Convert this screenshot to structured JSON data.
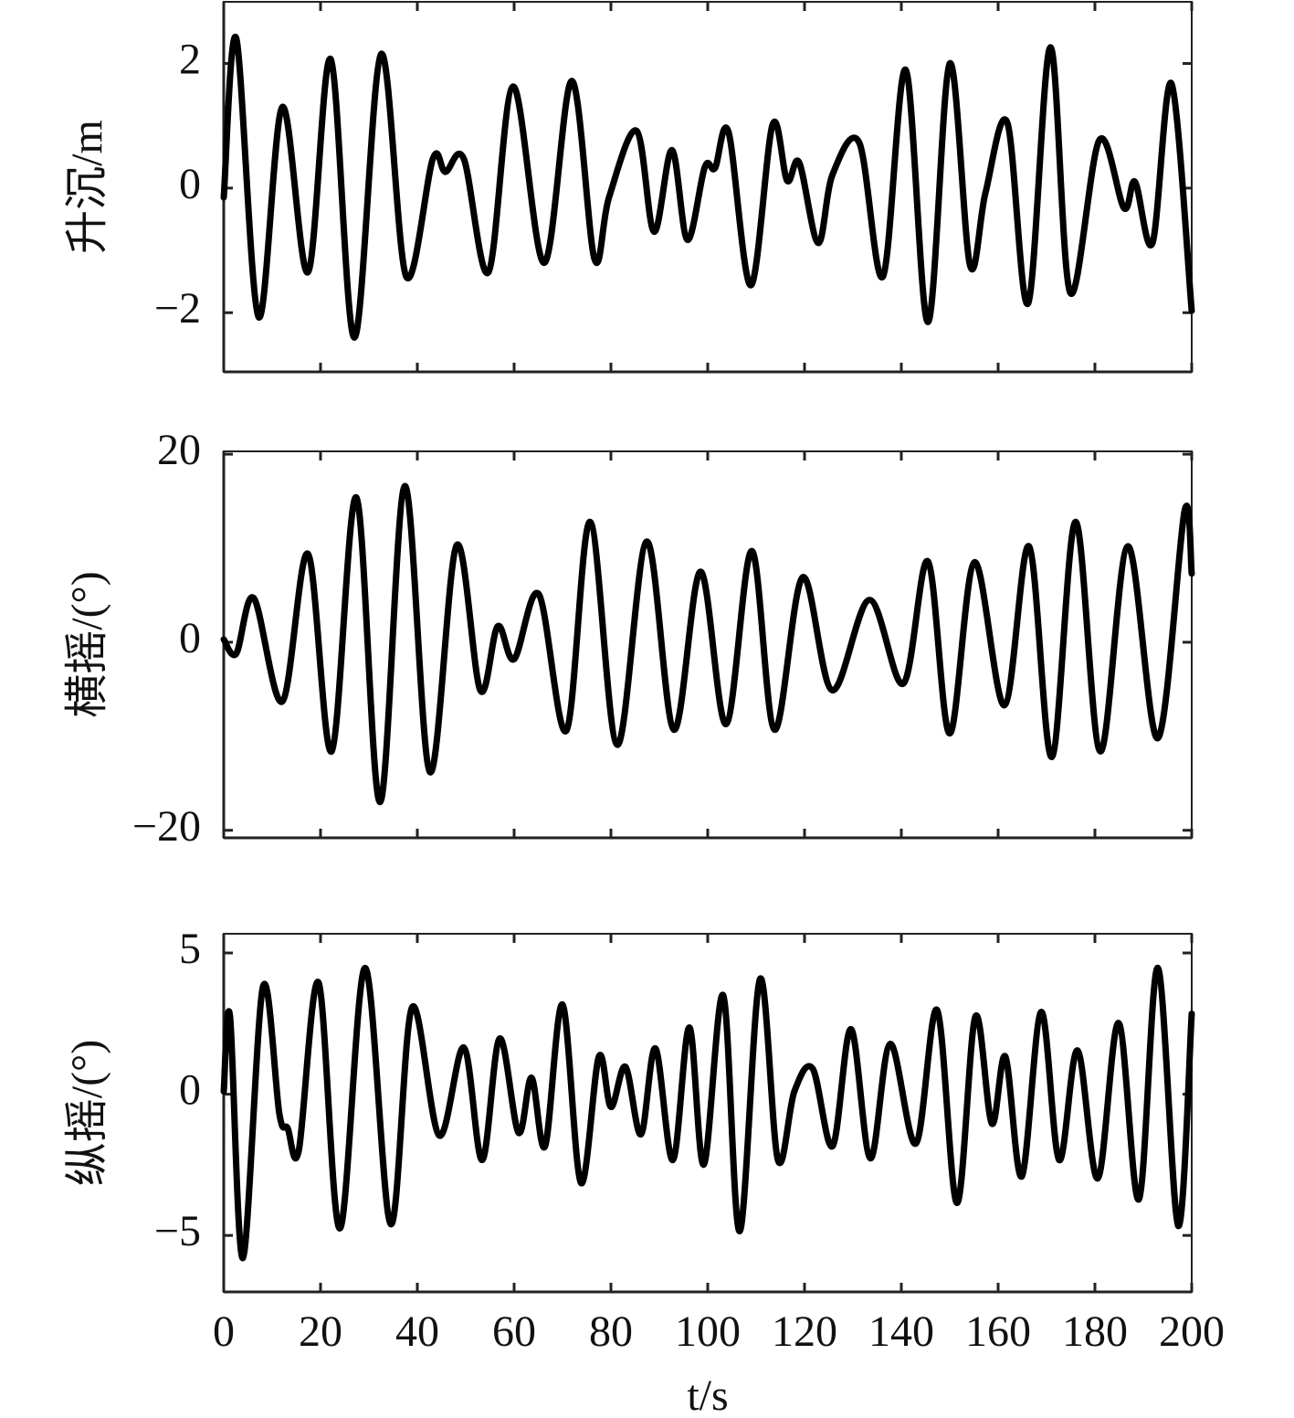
{
  "chart_data": [
    {
      "type": "line",
      "ylabel": "升沉/m",
      "color": "#000000",
      "xlim": [
        0,
        200
      ],
      "xticks": [
        0,
        20,
        40,
        60,
        80,
        100,
        120,
        140,
        160,
        180,
        200
      ],
      "ylim": [
        -2.95,
        2.99
      ],
      "yticks": [
        {
          "value": -2,
          "label": "−2"
        },
        0,
        2
      ],
      "x": [
        0,
        2.6,
        7.2,
        12.1,
        17.4,
        22.1,
        27.0,
        32.5,
        37.7,
        43.2,
        45.8,
        49.6,
        54.7,
        59.8,
        66.2,
        71.9,
        76.6,
        79.6,
        85.3,
        88.9,
        92.6,
        95.8,
        99.4,
        101.5,
        104.3,
        108.9,
        113.4,
        116.4,
        118.9,
        122.8,
        125.8,
        131.3,
        136.2,
        140.9,
        145.5,
        150.0,
        154.2,
        157.4,
        161.9,
        166.2,
        170.8,
        174.9,
        180.9,
        186.0,
        188.3,
        191.9,
        195.8,
        200
      ],
      "values": [
        -0.15,
        2.4,
        -2.07,
        1.3,
        -1.35,
        2.07,
        -2.4,
        2.15,
        -1.42,
        0.47,
        0.26,
        0.47,
        -1.35,
        1.63,
        -1.2,
        1.72,
        -1.14,
        -0.15,
        0.92,
        -0.7,
        0.61,
        -0.83,
        0.34,
        0.32,
        0.9,
        -1.56,
        1.02,
        0.12,
        0.41,
        -0.88,
        0.22,
        0.73,
        -1.42,
        1.9,
        -2.15,
        2.0,
        -1.24,
        -0.07,
        1.05,
        -1.85,
        2.26,
        -1.68,
        0.77,
        -0.32,
        0.1,
        -0.88,
        1.68,
        -1.97
      ]
    },
    {
      "type": "line",
      "ylabel": "横摇/(°)",
      "color": "#000000",
      "xlim": [
        0,
        200
      ],
      "xticks": [
        0,
        20,
        40,
        60,
        80,
        100,
        120,
        140,
        160,
        180,
        200
      ],
      "ylim": [
        -20.8,
        20.3
      ],
      "yticks": [
        {
          "value": -20,
          "label": "−20"
        },
        0,
        20
      ],
      "x": [
        0,
        2.6,
        6.2,
        12.1,
        17.4,
        22.3,
        27.4,
        32.3,
        37.4,
        42.6,
        48.1,
        53.0,
        56.6,
        60.0,
        65.1,
        70.8,
        75.7,
        81.3,
        87.4,
        93.0,
        98.5,
        103.8,
        109.1,
        113.8,
        119.6,
        125.7,
        133.4,
        140.4,
        145.5,
        150.0,
        155.1,
        161.3,
        166.4,
        171.1,
        176.0,
        181.1,
        186.8,
        193.0,
        198.5,
        200
      ],
      "values": [
        0.3,
        -1.2,
        4.7,
        -6.3,
        9.4,
        -11.6,
        15.4,
        -17.0,
        16.6,
        -13.8,
        10.3,
        -5.1,
        1.7,
        -1.8,
        5.1,
        -9.4,
        12.8,
        -10.9,
        10.7,
        -9.3,
        7.5,
        -8.7,
        9.7,
        -9.3,
        6.9,
        -5.1,
        4.5,
        -4.4,
        8.6,
        -9.7,
        8.5,
        -6.7,
        10.2,
        -12.2,
        12.8,
        -11.6,
        10.2,
        -10.2,
        13.9,
        7.3
      ]
    },
    {
      "type": "line",
      "ylabel": "纵摇/(°)",
      "xlabel": "t/s",
      "color": "#000000",
      "xlim": [
        0,
        200
      ],
      "xticks": [
        0,
        20,
        40,
        60,
        80,
        100,
        120,
        140,
        160,
        180,
        200
      ],
      "ylim": [
        -7.0,
        5.68
      ],
      "yticks": [
        {
          "value": -5,
          "label": "−5"
        },
        0,
        5
      ],
      "x": [
        0,
        1.3,
        3.96,
        8.1,
        11.5,
        13.2,
        15.5,
        19.6,
        24.0,
        29.2,
        34.5,
        38.9,
        44.5,
        49.6,
        53.4,
        57.0,
        60.9,
        63.6,
        66.4,
        70.0,
        73.8,
        77.5,
        80.0,
        83.0,
        86.2,
        89.2,
        92.8,
        96.2,
        99.2,
        103.2,
        106.6,
        110.8,
        114.5,
        117.9,
        121.7,
        125.8,
        129.6,
        133.6,
        137.7,
        143.0,
        147.4,
        151.5,
        155.3,
        158.7,
        161.5,
        164.9,
        168.9,
        172.6,
        176.4,
        180.6,
        184.9,
        189.1,
        193.0,
        197.2,
        200
      ],
      "values": [
        0.1,
        2.75,
        -5.8,
        3.8,
        -0.7,
        -1.2,
        -2.0,
        3.95,
        -4.75,
        4.47,
        -4.6,
        3.07,
        -1.46,
        1.65,
        -2.33,
        1.97,
        -1.36,
        0.58,
        -1.84,
        3.17,
        -3.14,
        1.33,
        -0.45,
        0.97,
        -1.42,
        1.62,
        -2.33,
        2.36,
        -2.49,
        3.5,
        -4.85,
        4.08,
        -2.33,
        0.1,
        0.9,
        -1.84,
        2.3,
        -2.27,
        1.78,
        -1.75,
        2.98,
        -3.85,
        2.75,
        -1.04,
        1.33,
        -2.91,
        2.91,
        -2.33,
        1.55,
        -2.98,
        2.52,
        -3.72,
        4.47,
        -4.66,
        2.85
      ]
    }
  ]
}
